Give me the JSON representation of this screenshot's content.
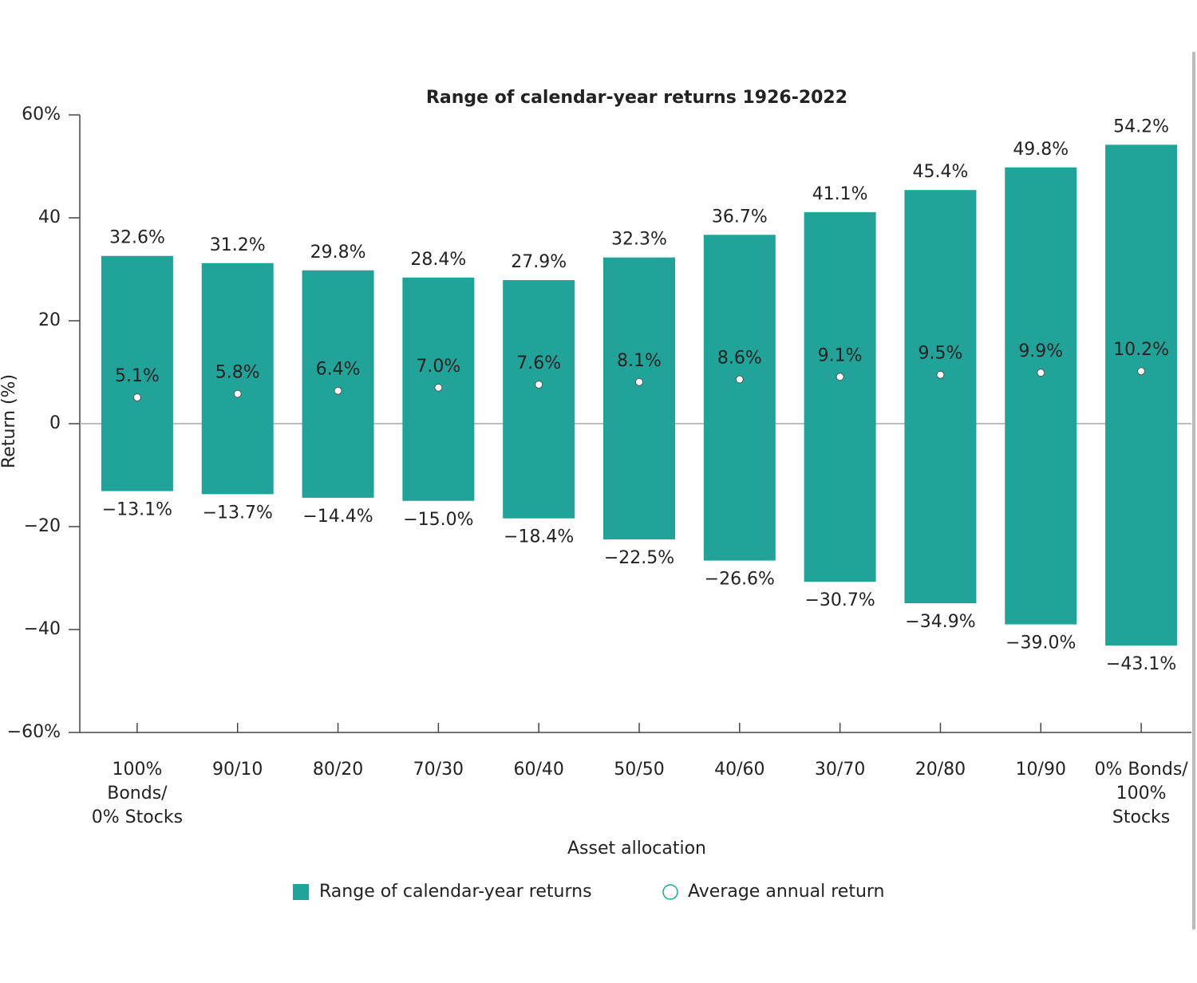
{
  "chart_data": {
    "type": "range_bar",
    "title": "Range of calendar-year returns 1926-2022",
    "x_label": "Asset allocation",
    "y_label": "Return (%)",
    "categories": [
      [
        "100%",
        "Bonds/",
        "0% Stocks"
      ],
      [
        "90/10"
      ],
      [
        "80/20"
      ],
      [
        "70/30"
      ],
      [
        "60/40"
      ],
      [
        "50/50"
      ],
      [
        "40/60"
      ],
      [
        "30/70"
      ],
      [
        "20/80"
      ],
      [
        "10/90"
      ],
      [
        "0% Bonds/",
        "100%",
        "Stocks"
      ]
    ],
    "series": [
      {
        "name": "Range of calendar-year returns",
        "color": "#21a39a",
        "high": [
          32.6,
          31.2,
          29.8,
          28.4,
          27.9,
          32.3,
          36.7,
          41.1,
          45.4,
          49.8,
          54.2
        ],
        "high_labels": [
          "32.6%",
          "31.2%",
          "29.8%",
          "28.4%",
          "27.9%",
          "32.3%",
          "36.7%",
          "41.1%",
          "45.4%",
          "49.8%",
          "54.2%"
        ],
        "low": [
          -13.1,
          -13.7,
          -14.4,
          -15.0,
          -18.4,
          -22.5,
          -26.6,
          -30.7,
          -34.9,
          -39.0,
          -43.1
        ],
        "low_labels": [
          "−13.1%",
          "−13.7%",
          "−14.4%",
          "−15.0%",
          "−18.4%",
          "−22.5%",
          "−26.6%",
          "−30.7%",
          "−34.9%",
          "−39.0%",
          "−43.1%"
        ]
      },
      {
        "name": "Average annual return",
        "color": "#21a39a",
        "values": [
          5.1,
          5.8,
          6.4,
          7.0,
          7.6,
          8.1,
          8.6,
          9.1,
          9.5,
          9.9,
          10.2
        ],
        "value_labels": [
          "5.1%",
          "5.8%",
          "6.4%",
          "7.0%",
          "7.6%",
          "8.1%",
          "8.6%",
          "9.1%",
          "9.5%",
          "9.9%",
          "10.2%"
        ]
      }
    ],
    "ylim": [
      -60,
      60
    ],
    "yticks": [
      {
        "value": -60,
        "label": "−60%"
      },
      {
        "value": -40,
        "label": "−40"
      },
      {
        "value": -20,
        "label": "−20"
      },
      0,
      20,
      40,
      {
        "value": 60,
        "label": "60%"
      }
    ],
    "zero_line": true
  }
}
